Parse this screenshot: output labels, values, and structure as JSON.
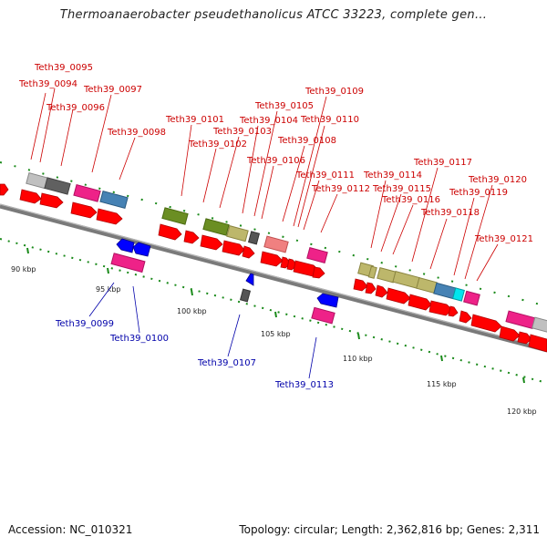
{
  "title": "Thermoanaerobacter pseudethanolicus ATCC 33223, complete gen...",
  "footer": {
    "accession": "Accession: NC_010321",
    "topology": "Topology: circular; Length: 2,362,816 bp; Genes: 2,311"
  },
  "colors": {
    "forward_gene": "#ff0000",
    "reverse_gene": "#0000ff",
    "label_forward": "#cc0000",
    "label_reverse": "#0000aa",
    "backbone": "#808080",
    "tick": "#008000"
  },
  "ticks": [
    "90 kbp",
    "95 kbp",
    "100 kbp",
    "105 kbp",
    "110 kbp",
    "115 kbp",
    "120 kbp"
  ],
  "forward_labels": [
    "Teth39_0095",
    "Teth39_0094",
    "Teth39_0097",
    "Teth39_0096",
    "Teth39_0098",
    "Teth39_0101",
    "Teth39_0102",
    "Teth39_0103",
    "Teth39_0104",
    "Teth39_0105",
    "Teth39_0106",
    "Teth39_0109",
    "Teth39_0110",
    "Teth39_0108",
    "Teth39_0111",
    "Teth39_0112",
    "Teth39_0114",
    "Teth39_0115",
    "Teth39_0116",
    "Teth39_0117",
    "Teth39_0118",
    "Teth39_0119",
    "Teth39_0120",
    "Teth39_0121"
  ],
  "reverse_labels": [
    "Teth39_0099",
    "Teth39_0100",
    "Teth39_0107",
    "Teth39_0113"
  ]
}
